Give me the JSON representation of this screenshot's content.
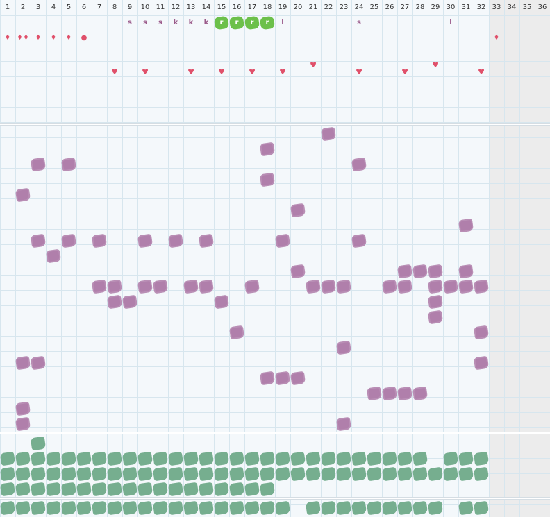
{
  "header": {
    "days": [
      "1",
      "2",
      "3",
      "4",
      "5",
      "6",
      "7",
      "8",
      "9",
      "10",
      "11",
      "12",
      "13",
      "14",
      "15",
      "16",
      "17",
      "18",
      "19",
      "20",
      "21",
      "22",
      "23",
      "24",
      "25",
      "26",
      "27",
      "28",
      "29",
      "30",
      "31",
      "32",
      "33",
      "34",
      "35",
      "36"
    ]
  },
  "colors": {
    "purple": "#b07fab",
    "green": "#76ae8f",
    "bright_green": "#6cc04a",
    "red": "#e0506a",
    "letter": "#9a5a8a"
  },
  "letters": [
    {
      "day": 9,
      "text": "s"
    },
    {
      "day": 10,
      "text": "s"
    },
    {
      "day": 11,
      "text": "s"
    },
    {
      "day": 12,
      "text": "k"
    },
    {
      "day": 13,
      "text": "k"
    },
    {
      "day": 14,
      "text": "k"
    },
    {
      "day": 19,
      "text": "l"
    },
    {
      "day": 24,
      "text": "s"
    },
    {
      "day": 30,
      "text": "l"
    }
  ],
  "highlight_letters": [
    {
      "day": 15,
      "text": "r"
    },
    {
      "day": 16,
      "text": "r"
    },
    {
      "day": 17,
      "text": "r"
    },
    {
      "day": 18,
      "text": "r"
    }
  ],
  "drops": [
    {
      "day": 1,
      "symbol": "♦"
    },
    {
      "day": 2,
      "symbol": "♦♦"
    },
    {
      "day": 3,
      "symbol": "♦"
    },
    {
      "day": 4,
      "symbol": "♦"
    },
    {
      "day": 5,
      "symbol": "♦"
    },
    {
      "day": 6,
      "symbol": "●"
    },
    {
      "day": 33,
      "symbol": "♦"
    }
  ],
  "hearts": [
    {
      "day": 8,
      "row": "low",
      "symbol": "♥"
    },
    {
      "day": 10,
      "row": "low",
      "symbol": "♥"
    },
    {
      "day": 13,
      "row": "low",
      "symbol": "♥"
    },
    {
      "day": 15,
      "row": "low",
      "symbol": "♥"
    },
    {
      "day": 17,
      "row": "low",
      "symbol": "♥"
    },
    {
      "day": 19,
      "row": "low",
      "symbol": "♥"
    },
    {
      "day": 21,
      "row": "high",
      "symbol": "♥"
    },
    {
      "day": 24,
      "row": "low",
      "symbol": "♥"
    },
    {
      "day": 27,
      "row": "low",
      "symbol": "♥"
    },
    {
      "day": 29,
      "row": "high",
      "symbol": "♥"
    },
    {
      "day": 32,
      "row": "low",
      "symbol": "♥"
    }
  ],
  "purple_marks": [
    [
      22,
      1
    ],
    [
      18,
      2
    ],
    [
      3,
      3
    ],
    [
      5,
      3
    ],
    [
      24,
      3
    ],
    [
      18,
      4
    ],
    [
      2,
      5
    ],
    [
      20,
      6
    ],
    [
      31,
      7
    ],
    [
      3,
      8
    ],
    [
      5,
      8
    ],
    [
      7,
      8
    ],
    [
      10,
      8
    ],
    [
      12,
      8
    ],
    [
      14,
      8
    ],
    [
      19,
      8
    ],
    [
      24,
      8
    ],
    [
      4,
      9
    ],
    [
      20,
      10
    ],
    [
      27,
      10
    ],
    [
      28,
      10
    ],
    [
      29,
      10
    ],
    [
      31,
      10
    ],
    [
      7,
      11
    ],
    [
      8,
      11
    ],
    [
      10,
      11
    ],
    [
      11,
      11
    ],
    [
      13,
      11
    ],
    [
      14,
      11
    ],
    [
      17,
      11
    ],
    [
      21,
      11
    ],
    [
      22,
      11
    ],
    [
      23,
      11
    ],
    [
      26,
      11
    ],
    [
      27,
      11
    ],
    [
      29,
      11
    ],
    [
      30,
      11
    ],
    [
      31,
      11
    ],
    [
      32,
      11
    ],
    [
      8,
      12
    ],
    [
      9,
      12
    ],
    [
      15,
      12
    ],
    [
      29,
      12
    ],
    [
      29,
      13
    ],
    [
      16,
      14
    ],
    [
      32,
      14
    ],
    [
      23,
      15
    ],
    [
      2,
      16
    ],
    [
      3,
      16
    ],
    [
      32,
      16
    ],
    [
      18,
      17
    ],
    [
      19,
      17
    ],
    [
      20,
      17
    ],
    [
      25,
      18
    ],
    [
      26,
      18
    ],
    [
      27,
      18
    ],
    [
      28,
      18
    ],
    [
      2,
      19
    ],
    [
      2,
      20
    ],
    [
      23,
      20
    ]
  ],
  "green_rows": [
    {
      "row": 0,
      "days": [
        3
      ]
    },
    {
      "row": 1,
      "days": [
        1,
        2,
        3,
        4,
        5,
        6,
        7,
        8,
        9,
        10,
        11,
        12,
        13,
        14,
        15,
        16,
        17,
        18,
        19,
        20,
        21,
        22,
        23,
        24,
        25,
        26,
        27,
        28,
        30,
        31,
        32
      ]
    },
    {
      "row": 2,
      "days": [
        1,
        2,
        3,
        4,
        5,
        6,
        7,
        8,
        9,
        10,
        11,
        12,
        13,
        14,
        15,
        16,
        17,
        18,
        19,
        20,
        21,
        22,
        23,
        24,
        25,
        26,
        27,
        28,
        29,
        30,
        31,
        32
      ]
    },
    {
      "row": 3,
      "days": [
        1,
        2,
        3,
        4,
        5,
        6,
        7,
        8,
        9,
        10,
        11,
        12,
        13,
        14,
        15,
        16,
        17,
        18
      ]
    },
    {
      "row": 4,
      "days": [
        1,
        2,
        3,
        4,
        5,
        6,
        7,
        8,
        9,
        10,
        11,
        12,
        13,
        14,
        15,
        16,
        17,
        18,
        19,
        21,
        22,
        23,
        24,
        25,
        26,
        27,
        28,
        29,
        31,
        32
      ]
    }
  ]
}
